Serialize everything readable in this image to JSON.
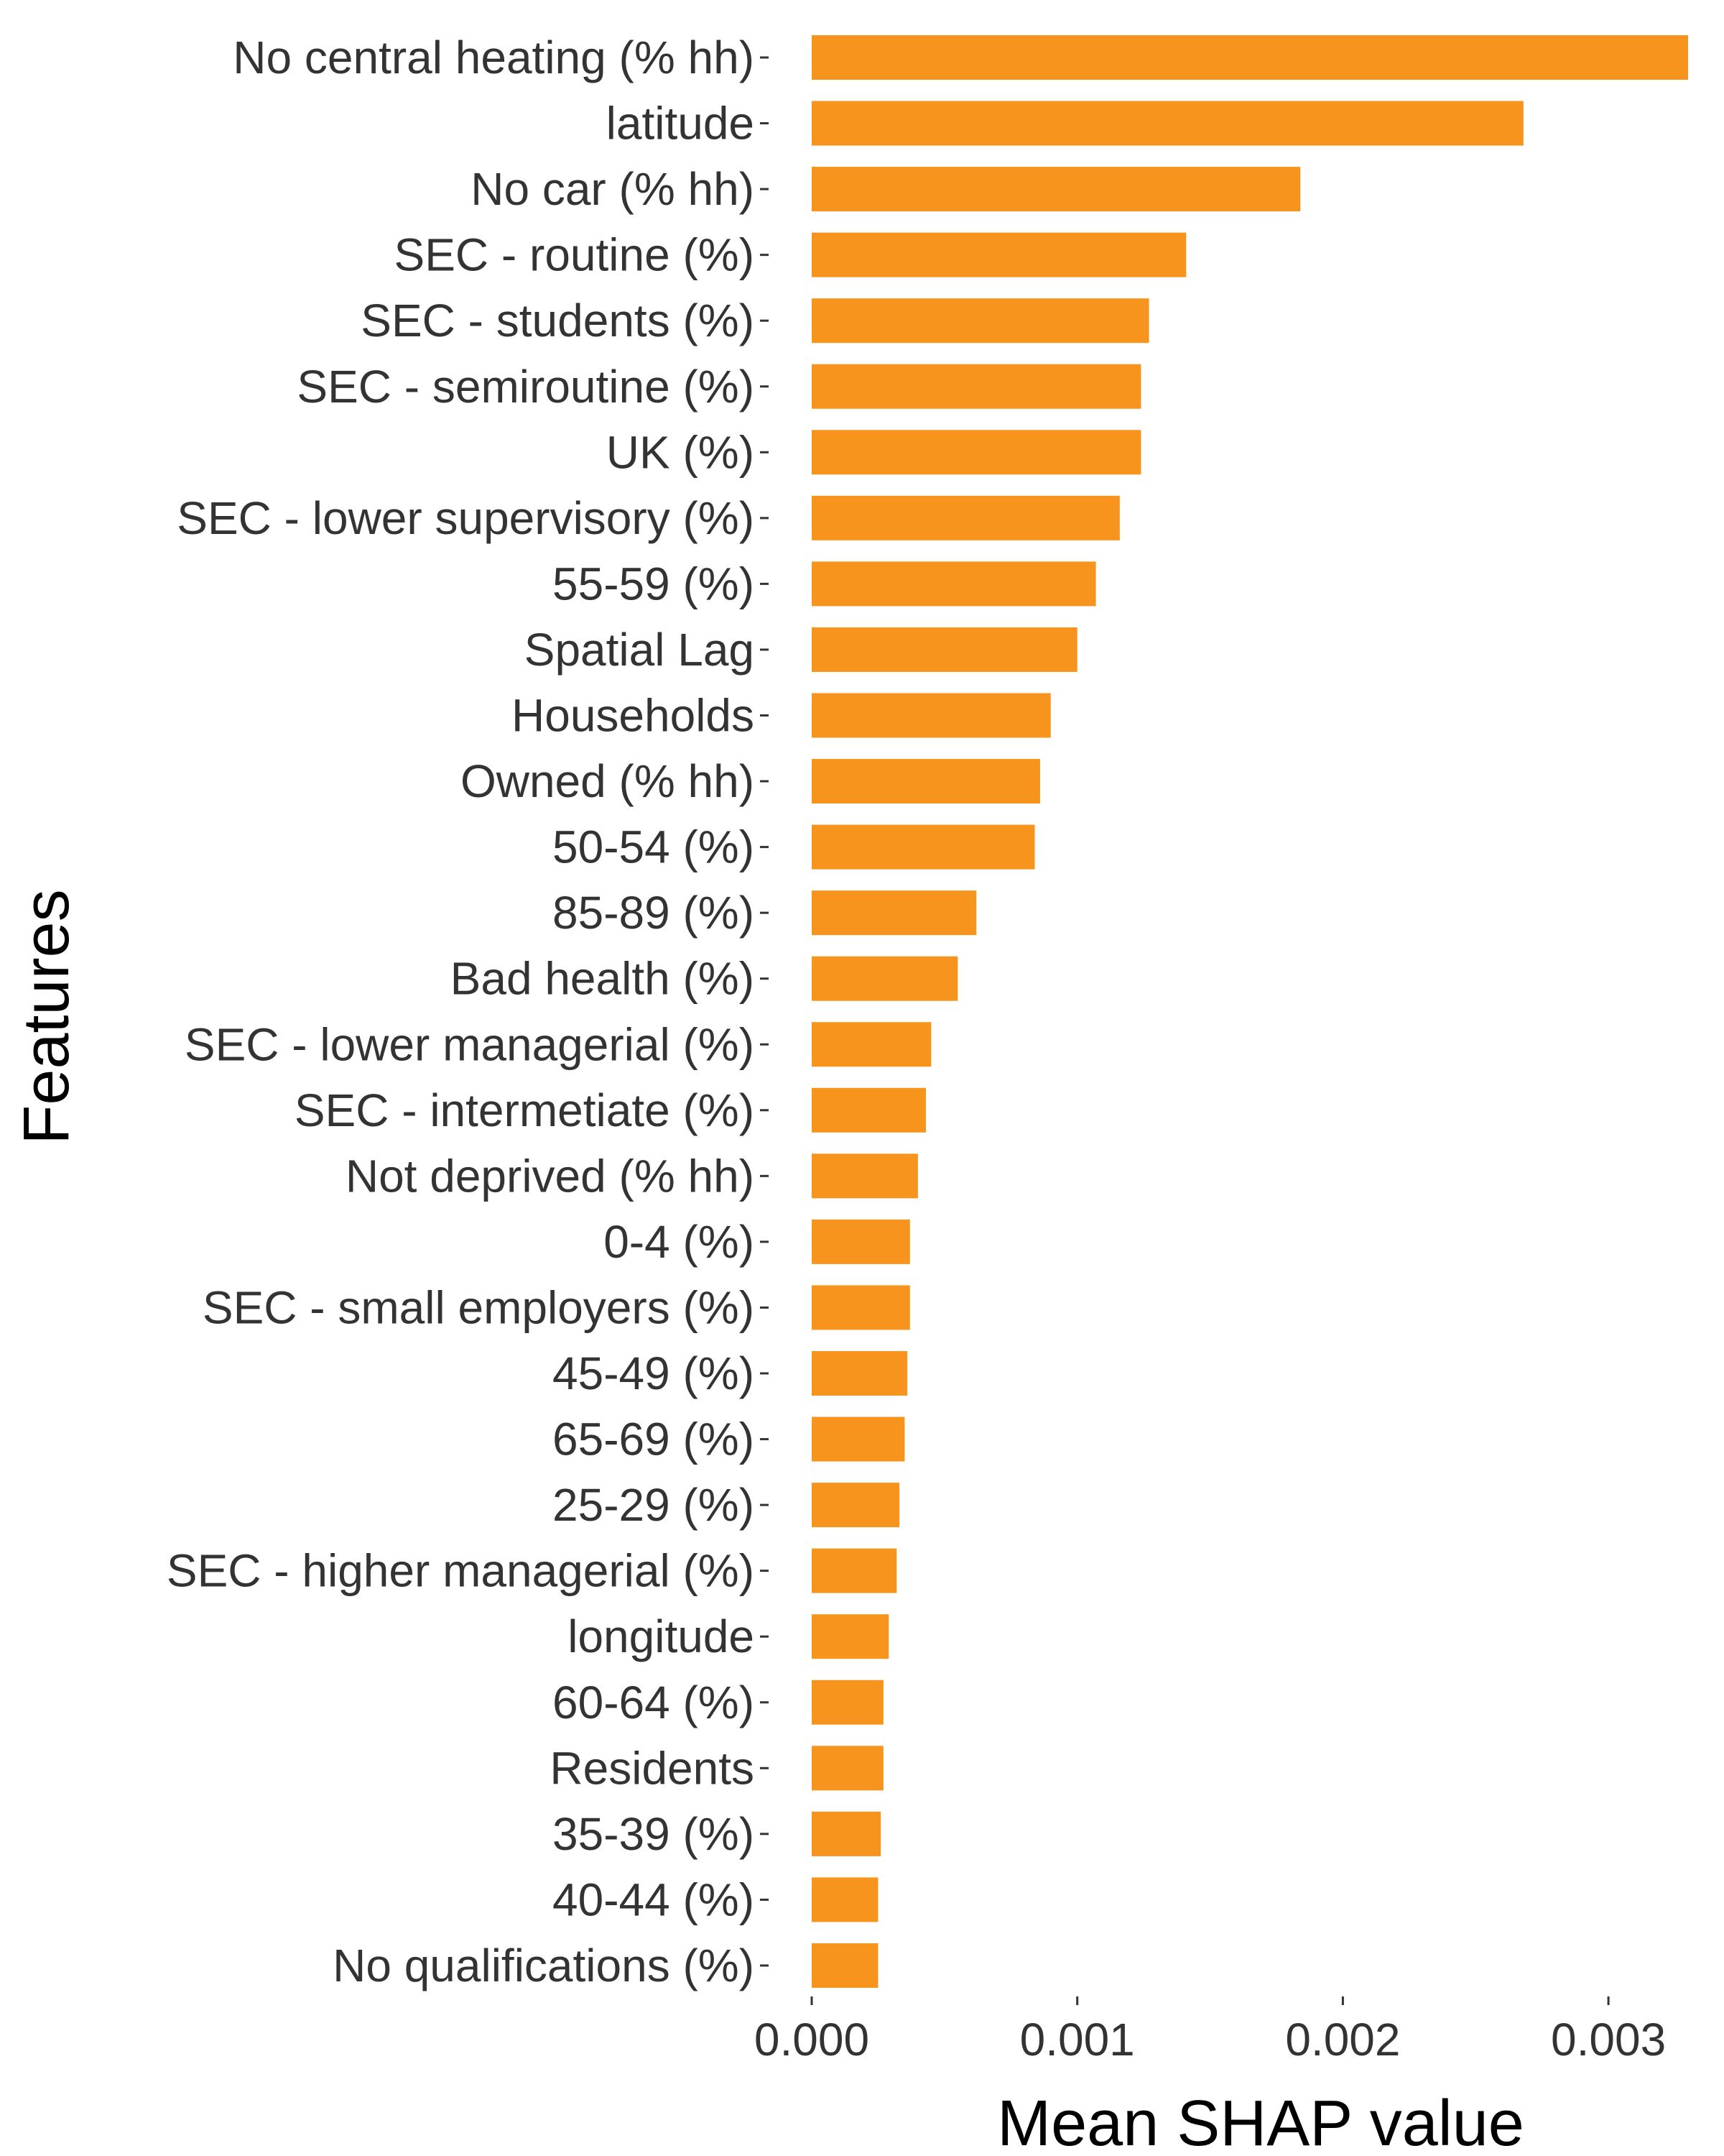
{
  "chart_data": {
    "type": "bar",
    "orientation": "horizontal",
    "categories": [
      "No central heating (% hh)",
      "latitude",
      "No car (% hh)",
      "SEC - routine (%)",
      "SEC - students (%)",
      "SEC - semiroutine (%)",
      "UK (%)",
      "SEC - lower supervisory (%)",
      "55-59 (%)",
      "Spatial Lag",
      "Households",
      "Owned (% hh)",
      "50-54 (%)",
      "85-89 (%)",
      "Bad health (%)",
      "SEC - lower managerial (%)",
      "SEC - intermetiate (%)",
      "Not deprived (% hh)",
      "0-4 (%)",
      "SEC - small employers (%)",
      "45-49 (%)",
      "65-69 (%)",
      "25-29 (%)",
      "SEC - higher managerial (%)",
      "longitude",
      "60-64 (%)",
      "Residents",
      "35-39 (%)",
      "40-44 (%)",
      "No qualifications (%)"
    ],
    "values": [
      0.0033,
      0.00268,
      0.00184,
      0.00141,
      0.00127,
      0.00124,
      0.00124,
      0.00116,
      0.00107,
      0.001,
      0.0009,
      0.00086,
      0.00084,
      0.00062,
      0.00055,
      0.00045,
      0.00043,
      0.0004,
      0.00037,
      0.00037,
      0.00036,
      0.00035,
      0.00033,
      0.00032,
      0.00029,
      0.00027,
      0.00027,
      0.00026,
      0.00025,
      0.00025
    ],
    "xlim": [
      0,
      0.0033
    ],
    "xticks": [
      0.0,
      0.001,
      0.002,
      0.003
    ],
    "xtick_labels": [
      "0.000",
      "0.001",
      "0.002",
      "0.003"
    ],
    "xlabel": "Mean SHAP value",
    "ylabel": "Features",
    "bar_color": "#F7941D",
    "grid": false,
    "legend": "none"
  }
}
